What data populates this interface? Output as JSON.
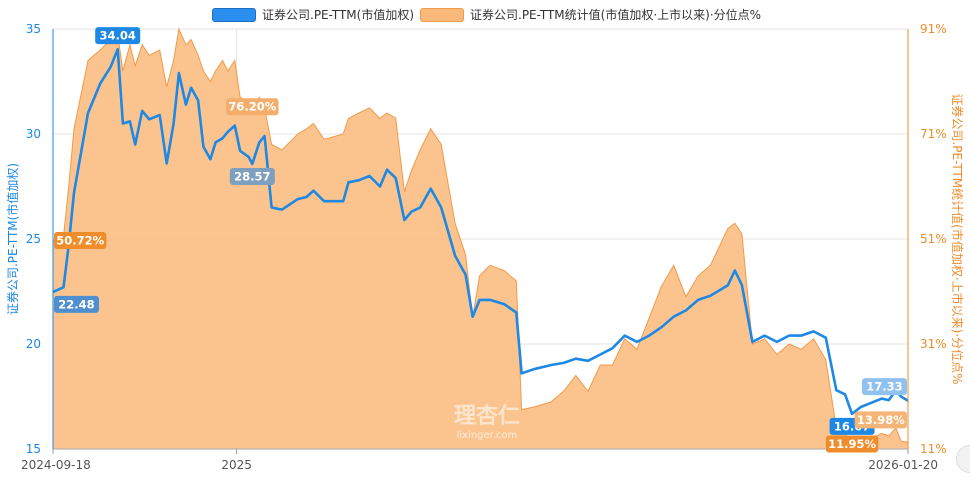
{
  "chart_data": {
    "type": "line+area",
    "title": "",
    "legend": [
      {
        "name": "证券公司.PE-TTM(市值加权)",
        "color": "#1e88e5"
      },
      {
        "name": "证券公司.PE-TTM统计值(市值加权·上市以来)·分位点%",
        "color": "#f9b97a"
      }
    ],
    "y_left": {
      "label": "证券公司.PE-TTM(市值加权)",
      "min": 15,
      "max": 35,
      "ticks": [
        "15",
        "20",
        "25",
        "30",
        "35"
      ],
      "color": "#1e88e5"
    },
    "y_right": {
      "label": "证券公司.PE-TTM统计值(市值加权·上市以来)·分位点%",
      "min": 11,
      "max": 91,
      "ticks": [
        "11%",
        "31%",
        "51%",
        "71%",
        "91%"
      ],
      "color": "#ef8c2b"
    },
    "x": {
      "start": "2024-09-18",
      "end": "2026-01-20",
      "ticks": [
        {
          "date": "2024-09-18",
          "label": "2024-09-18"
        },
        {
          "date": "2025-01-01",
          "label": "2025"
        },
        {
          "date": "2026-01-20",
          "label": "2026-01-20"
        }
      ]
    },
    "series_line": {
      "name": "证券公司.PE-TTM(市值加权)",
      "points": [
        [
          "2024-09-18",
          22.48
        ],
        [
          "2024-09-24",
          22.7
        ],
        [
          "2024-09-27",
          24.7
        ],
        [
          "2024-09-30",
          27.2
        ],
        [
          "2024-10-08",
          31.0
        ],
        [
          "2024-10-15",
          32.4
        ],
        [
          "2024-10-21",
          33.2
        ],
        [
          "2024-10-25",
          34.04
        ],
        [
          "2024-10-28",
          30.5
        ],
        [
          "2024-11-01",
          30.6
        ],
        [
          "2024-11-04",
          29.5
        ],
        [
          "2024-11-08",
          31.1
        ],
        [
          "2024-11-12",
          30.7
        ],
        [
          "2024-11-18",
          30.9
        ],
        [
          "2024-11-22",
          28.6
        ],
        [
          "2024-11-26",
          30.5
        ],
        [
          "2024-11-29",
          32.9
        ],
        [
          "2024-12-03",
          31.4
        ],
        [
          "2024-12-06",
          32.2
        ],
        [
          "2024-12-10",
          31.6
        ],
        [
          "2024-12-13",
          29.4
        ],
        [
          "2024-12-17",
          28.8
        ],
        [
          "2024-12-20",
          29.6
        ],
        [
          "2024-12-24",
          29.8
        ],
        [
          "2024-12-27",
          30.1
        ],
        [
          "2024-12-31",
          30.4
        ],
        [
          "2025-01-03",
          29.2
        ],
        [
          "2025-01-08",
          28.9
        ],
        [
          "2025-01-10",
          28.57
        ],
        [
          "2025-01-14",
          29.6
        ],
        [
          "2025-01-17",
          29.9
        ],
        [
          "2025-01-21",
          26.5
        ],
        [
          "2025-01-27",
          26.4
        ],
        [
          "2025-02-05",
          26.9
        ],
        [
          "2025-02-10",
          27.0
        ],
        [
          "2025-02-14",
          27.3
        ],
        [
          "2025-02-20",
          26.8
        ],
        [
          "2025-03-03",
          26.8
        ],
        [
          "2025-03-06",
          27.7
        ],
        [
          "2025-03-12",
          27.8
        ],
        [
          "2025-03-18",
          28.0
        ],
        [
          "2025-03-24",
          27.5
        ],
        [
          "2025-03-28",
          28.3
        ],
        [
          "2025-04-02",
          27.9
        ],
        [
          "2025-04-07",
          25.9
        ],
        [
          "2025-04-11",
          26.3
        ],
        [
          "2025-04-16",
          26.5
        ],
        [
          "2025-04-22",
          27.4
        ],
        [
          "2025-04-28",
          26.5
        ],
        [
          "2025-05-06",
          24.2
        ],
        [
          "2025-05-12",
          23.3
        ],
        [
          "2025-05-16",
          21.3
        ],
        [
          "2025-05-20",
          22.1
        ],
        [
          "2025-05-26",
          22.1
        ],
        [
          "2025-06-03",
          21.9
        ],
        [
          "2025-06-10",
          21.5
        ],
        [
          "2025-06-13",
          18.6
        ],
        [
          "2025-06-20",
          18.8
        ],
        [
          "2025-06-30",
          19.0
        ],
        [
          "2025-07-07",
          19.1
        ],
        [
          "2025-07-14",
          19.3
        ],
        [
          "2025-07-21",
          19.2
        ],
        [
          "2025-07-28",
          19.5
        ],
        [
          "2025-08-04",
          19.8
        ],
        [
          "2025-08-11",
          20.4
        ],
        [
          "2025-08-18",
          20.1
        ],
        [
          "2025-08-25",
          20.4
        ],
        [
          "2025-09-01",
          20.8
        ],
        [
          "2025-09-08",
          21.3
        ],
        [
          "2025-09-15",
          21.6
        ],
        [
          "2025-09-22",
          22.1
        ],
        [
          "2025-09-29",
          22.3
        ],
        [
          "2025-10-09",
          22.8
        ],
        [
          "2025-10-13",
          23.5
        ],
        [
          "2025-10-17",
          22.8
        ],
        [
          "2025-10-23",
          20.1
        ],
        [
          "2025-10-30",
          20.4
        ],
        [
          "2025-11-06",
          20.1
        ],
        [
          "2025-11-13",
          20.4
        ],
        [
          "2025-11-20",
          20.4
        ],
        [
          "2025-11-27",
          20.6
        ],
        [
          "2025-12-04",
          20.3
        ],
        [
          "2025-12-10",
          17.8
        ],
        [
          "2025-12-15",
          17.6
        ],
        [
          "2025-12-19",
          16.67
        ],
        [
          "2025-12-24",
          17.0
        ],
        [
          "2025-12-30",
          17.2
        ],
        [
          "2026-01-05",
          17.4
        ],
        [
          "2026-01-09",
          17.33
        ],
        [
          "2026-01-13",
          17.8
        ],
        [
          "2026-01-16",
          17.5
        ],
        [
          "2026-01-20",
          17.3
        ]
      ]
    },
    "series_area": {
      "name": "证券公司.PE-TTM统计值(市值加权·上市以来)·分位点%",
      "points": [
        [
          "2024-09-18",
          50.72
        ],
        [
          "2024-09-24",
          51.5
        ],
        [
          "2024-09-27",
          61.0
        ],
        [
          "2024-09-30",
          72.0
        ],
        [
          "2024-10-08",
          85.0
        ],
        [
          "2024-10-15",
          87.0
        ],
        [
          "2024-10-21",
          89.0
        ],
        [
          "2024-10-25",
          90.0
        ],
        [
          "2024-10-28",
          83.0
        ],
        [
          "2024-11-01",
          88.0
        ],
        [
          "2024-11-04",
          84.0
        ],
        [
          "2024-11-08",
          88.0
        ],
        [
          "2024-11-12",
          86.0
        ],
        [
          "2024-11-18",
          87.0
        ],
        [
          "2024-11-22",
          80.0
        ],
        [
          "2024-11-26",
          85.0
        ],
        [
          "2024-11-29",
          91.0
        ],
        [
          "2024-12-03",
          88.0
        ],
        [
          "2024-12-06",
          89.0
        ],
        [
          "2024-12-10",
          86.0
        ],
        [
          "2024-12-13",
          83.0
        ],
        [
          "2024-12-17",
          81.0
        ],
        [
          "2024-12-20",
          83.0
        ],
        [
          "2024-12-24",
          85.0
        ],
        [
          "2024-12-27",
          83.0
        ],
        [
          "2024-12-31",
          85.0
        ],
        [
          "2025-01-03",
          78.0
        ],
        [
          "2025-01-08",
          77.0
        ],
        [
          "2025-01-10",
          76.2
        ],
        [
          "2025-01-14",
          78.0
        ],
        [
          "2025-01-17",
          76.0
        ],
        [
          "2025-01-21",
          69.0
        ],
        [
          "2025-01-27",
          68.0
        ],
        [
          "2025-02-05",
          71.0
        ],
        [
          "2025-02-10",
          72.0
        ],
        [
          "2025-02-14",
          73.0
        ],
        [
          "2025-02-20",
          70.0
        ],
        [
          "2025-03-03",
          71.0
        ],
        [
          "2025-03-06",
          74.0
        ],
        [
          "2025-03-12",
          75.0
        ],
        [
          "2025-03-18",
          76.0
        ],
        [
          "2025-03-24",
          74.0
        ],
        [
          "2025-03-28",
          75.0
        ],
        [
          "2025-04-02",
          74.0
        ],
        [
          "2025-04-07",
          60.0
        ],
        [
          "2025-04-11",
          64.0
        ],
        [
          "2025-04-16",
          68.0
        ],
        [
          "2025-04-22",
          72.0
        ],
        [
          "2025-04-28",
          69.0
        ],
        [
          "2025-05-06",
          54.0
        ],
        [
          "2025-05-12",
          48.0
        ],
        [
          "2025-05-16",
          36.0
        ],
        [
          "2025-05-20",
          44.0
        ],
        [
          "2025-05-26",
          46.0
        ],
        [
          "2025-06-03",
          45.0
        ],
        [
          "2025-06-10",
          43.0
        ],
        [
          "2025-06-13",
          18.5
        ],
        [
          "2025-06-20",
          19.0
        ],
        [
          "2025-06-30",
          20.0
        ],
        [
          "2025-07-07",
          22.0
        ],
        [
          "2025-07-14",
          25.0
        ],
        [
          "2025-07-21",
          22.0
        ],
        [
          "2025-07-28",
          27.0
        ],
        [
          "2025-08-04",
          27.0
        ],
        [
          "2025-08-11",
          32.0
        ],
        [
          "2025-08-18",
          30.0
        ],
        [
          "2025-08-25",
          36.0
        ],
        [
          "2025-09-01",
          42.0
        ],
        [
          "2025-09-08",
          46.0
        ],
        [
          "2025-09-15",
          40.0
        ],
        [
          "2025-09-22",
          44.0
        ],
        [
          "2025-09-29",
          46.0
        ],
        [
          "2025-10-09",
          53.0
        ],
        [
          "2025-10-13",
          54.0
        ],
        [
          "2025-10-17",
          52.0
        ],
        [
          "2025-10-23",
          31.0
        ],
        [
          "2025-10-30",
          32.0
        ],
        [
          "2025-11-06",
          29.0
        ],
        [
          "2025-11-13",
          31.0
        ],
        [
          "2025-11-20",
          30.0
        ],
        [
          "2025-11-27",
          32.0
        ],
        [
          "2025-12-04",
          28.0
        ],
        [
          "2025-12-10",
          15.0
        ],
        [
          "2025-12-15",
          14.0
        ],
        [
          "2025-12-19",
          11.95
        ],
        [
          "2025-12-24",
          12.5
        ],
        [
          "2025-12-30",
          13.0
        ],
        [
          "2026-01-05",
          13.98
        ],
        [
          "2026-01-09",
          13.5
        ],
        [
          "2026-01-13",
          15.0
        ],
        [
          "2026-01-16",
          12.5
        ],
        [
          "2026-01-20",
          12.3
        ]
      ]
    },
    "annotations": [
      {
        "series": "line",
        "date": "2024-10-25",
        "value": 34.04,
        "text": "34.04",
        "style": "max",
        "place": "above"
      },
      {
        "series": "line",
        "date": "2024-09-18",
        "value": 22.48,
        "text": "22.48",
        "style": "start",
        "place": "below"
      },
      {
        "series": "line",
        "date": "2025-01-10",
        "value": 28.57,
        "text": "28.57",
        "style": "mid",
        "place": "below"
      },
      {
        "series": "line",
        "date": "2025-12-19",
        "value": 16.67,
        "text": "16.67",
        "style": "min",
        "place": "below"
      },
      {
        "series": "line",
        "date": "2026-01-09",
        "value": 17.33,
        "text": "17.33",
        "style": "last",
        "place": "above"
      },
      {
        "series": "area",
        "date": "2024-09-18",
        "value": 50.72,
        "text": "50.72%",
        "style": "start",
        "place": "center"
      },
      {
        "series": "area",
        "date": "2025-01-10",
        "value": 76.2,
        "text": "76.20%",
        "style": "mid",
        "place": "center"
      },
      {
        "series": "area",
        "date": "2025-12-19",
        "value": 11.95,
        "text": "11.95%",
        "style": "min",
        "place": "center"
      },
      {
        "series": "area",
        "date": "2026-01-05",
        "value": 13.98,
        "text": "13.98%",
        "style": "last",
        "place": "above"
      }
    ],
    "grid": true,
    "legend_position": "top-center"
  },
  "watermark": {
    "logo_text": "理杏仁",
    "url_text": "lixinger.com"
  }
}
